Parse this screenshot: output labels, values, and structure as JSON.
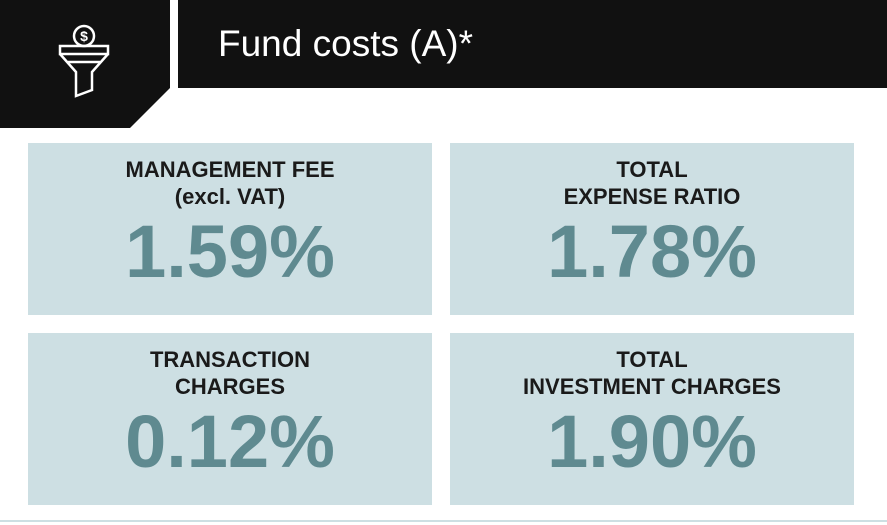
{
  "header": {
    "title": "Fund costs (A)*"
  },
  "cards": [
    {
      "label": [
        "MANAGEMENT FEE",
        "(excl. VAT)"
      ],
      "value": "1.59%"
    },
    {
      "label": [
        "TOTAL",
        "EXPENSE RATIO"
      ],
      "value": "1.78%"
    },
    {
      "label": [
        "TRANSACTION",
        "CHARGES"
      ],
      "value": "0.12%"
    },
    {
      "label": [
        "TOTAL",
        "INVESTMENT CHARGES"
      ],
      "value": "1.90%"
    }
  ]
}
